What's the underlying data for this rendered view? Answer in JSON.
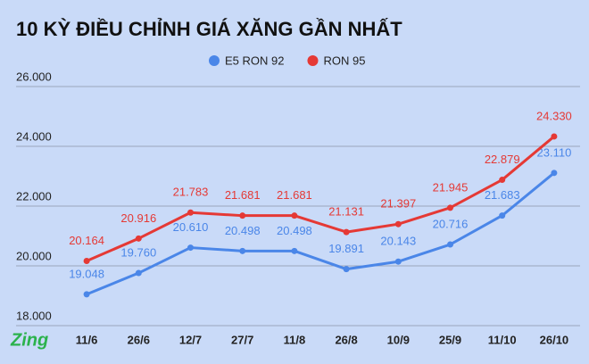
{
  "chart_data": {
    "type": "line",
    "title": "10 KỲ ĐIỀU CHỈNH GIÁ XĂNG GẦN NHẤT",
    "logo": "Zing",
    "categories": [
      "11/6",
      "26/6",
      "12/7",
      "27/7",
      "11/8",
      "26/8",
      "10/9",
      "25/9",
      "11/10",
      "26/10"
    ],
    "series": [
      {
        "name": "E5 RON 92",
        "color": "#4a86e8",
        "values": [
          19048,
          19760,
          20610,
          20498,
          20498,
          19891,
          20143,
          20716,
          21683,
          23110
        ],
        "value_labels": [
          "19.048",
          "19.760",
          "20.610",
          "20.498",
          "20.498",
          "19.891",
          "20.143",
          "20.716",
          "21.683",
          "23.110"
        ]
      },
      {
        "name": "RON 95",
        "color": "#e53935",
        "values": [
          20164,
          20916,
          21783,
          21681,
          21681,
          21131,
          21397,
          21945,
          22879,
          24330
        ],
        "value_labels": [
          "20.164",
          "20.916",
          "21.783",
          "21.681",
          "21.681",
          "21.131",
          "21.397",
          "21.945",
          "22.879",
          "24.330"
        ]
      }
    ],
    "ylim": [
      18000,
      26000
    ],
    "yticks": [
      {
        "value": 18000,
        "label": "18.000"
      },
      {
        "value": 20000,
        "label": "20.000"
      },
      {
        "value": 22000,
        "label": "22.000"
      },
      {
        "value": 24000,
        "label": "24.000"
      },
      {
        "value": 26000,
        "label": "26.000"
      }
    ],
    "grid": true,
    "legend": "top"
  }
}
